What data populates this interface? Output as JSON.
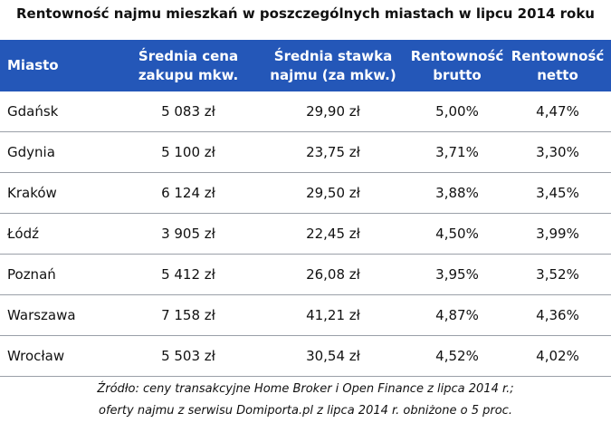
{
  "header": {
    "title": "Rentowność najmu mieszkań w poszczególnych miastach w lipcu 2014 roku"
  },
  "table": {
    "columns": [
      "Miasto",
      "Średnia cena zakupu mkw.",
      "Średnia stawka najmu (za mkw.)",
      "Rentowność brutto",
      "Rentowność netto"
    ],
    "rows": [
      [
        "Gdańsk",
        "5 083 zł",
        "29,90 zł",
        "5,00%",
        "4,47%"
      ],
      [
        "Gdynia",
        "5 100 zł",
        "23,75 zł",
        "3,71%",
        "3,30%"
      ],
      [
        "Kraków",
        "6 124 zł",
        "29,50 zł",
        "3,88%",
        "3,45%"
      ],
      [
        "Łódź",
        "3 905 zł",
        "22,45 zł",
        "4,50%",
        "3,99%"
      ],
      [
        "Poznań",
        "5 412 zł",
        "26,08 zł",
        "3,95%",
        "3,52%"
      ],
      [
        "Warszawa",
        "7 158 zł",
        "41,21 zł",
        "4,87%",
        "4,36%"
      ],
      [
        "Wrocław",
        "5 503 zł",
        "30,54 zł",
        "4,52%",
        "4,02%"
      ]
    ]
  },
  "footnote": [
    "Źródło: ceny transakcyjne Home Broker i Open Finance z lipca 2014 r.;",
    "oferty najmu z serwisu Domiporta.pl z lipca 2014 r. obniżone o 5 proc."
  ]
}
